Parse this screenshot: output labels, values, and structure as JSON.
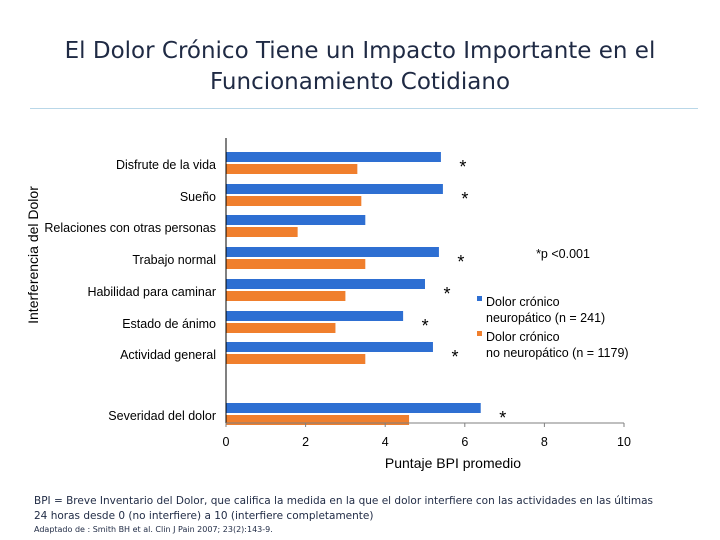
{
  "title": "El Dolor Crónico Tiene un Impacto Importante en el Funcionamiento Cotidiano",
  "chart_data": {
    "type": "bar",
    "orientation": "horizontal",
    "ylabel": "Interferencia del Dolor",
    "xlabel": "Puntaje BPI promedio",
    "xlim": [
      0,
      10
    ],
    "xticks": [
      "0",
      "2",
      "4",
      "6",
      "8",
      "10"
    ],
    "categories": [
      "Disfrute de la vida",
      "Sueño",
      "Relaciones con otras personas",
      "Trabajo normal",
      "Habilidad para caminar",
      "Estado de ánimo",
      "Actividad general",
      "Severidad del dolor"
    ],
    "series": [
      {
        "name": "Dolor crónico neuropático (n = 241)",
        "color": "#2e6fd2",
        "values": [
          5.4,
          5.45,
          3.5,
          5.35,
          5.0,
          4.45,
          5.2,
          6.4
        ],
        "significant": [
          true,
          true,
          false,
          true,
          true,
          true,
          true,
          true
        ]
      },
      {
        "name": "Dolor crónico no neuropático (n = 1179)",
        "color": "#f07f2d",
        "values": [
          3.3,
          3.4,
          1.8,
          3.5,
          3.0,
          2.75,
          3.5,
          4.6
        ]
      }
    ],
    "significance_marker": "*",
    "significance_note": "*p <0.001",
    "legend_position": "right"
  },
  "footnote": {
    "text": "BPI = Breve Inventario del Dolor, que califica la medida en la que el dolor interfiere con las actividades en las últimas 24 horas desde 0 (no interfiere) a 10 (interfiere completamente)",
    "reference": "Adaptado de : Smith BH et al. Clin J Pain 2007; 23(2):143-9."
  }
}
